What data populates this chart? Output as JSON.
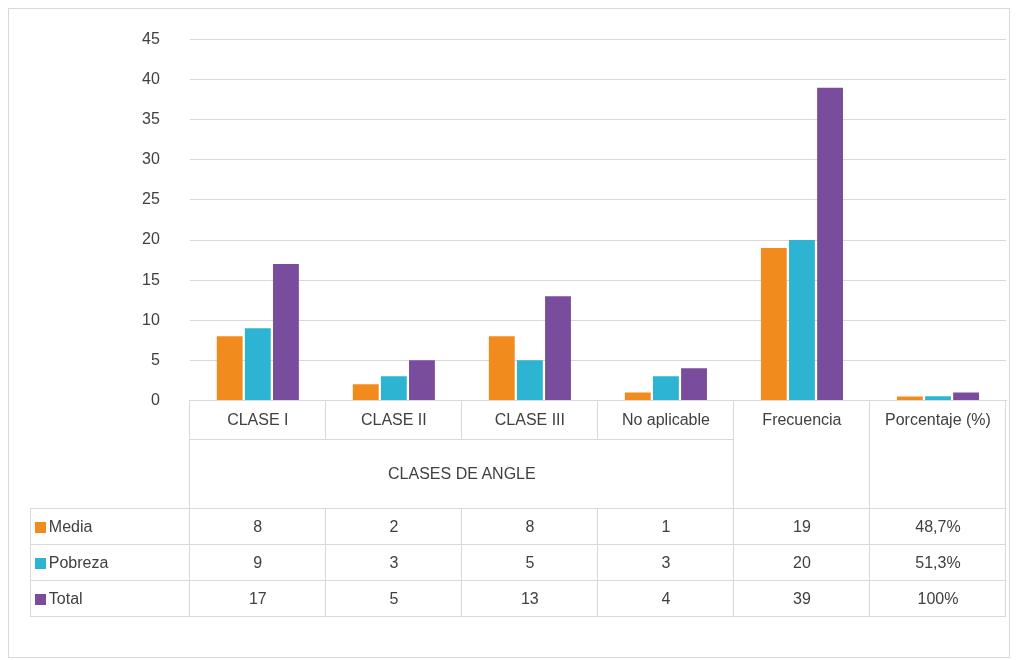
{
  "chart_data": {
    "type": "bar",
    "categories": [
      "CLASE I",
      "CLASE II",
      "CLASE III",
      "No aplicable",
      "Frecuencia",
      "Porcentaje (%)"
    ],
    "series": [
      {
        "name": "Media",
        "color": "#f28b1e",
        "values": [
          8,
          2,
          8,
          1,
          19,
          0.487
        ],
        "value_labels": [
          "8",
          "2",
          "8",
          "1",
          "19",
          "48,7%"
        ]
      },
      {
        "name": "Pobreza",
        "color": "#2db4d2",
        "values": [
          9,
          3,
          5,
          3,
          20,
          0.513
        ],
        "value_labels": [
          "9",
          "3",
          "5",
          "3",
          "20",
          "51,3%"
        ]
      },
      {
        "name": "Total",
        "color": "#7a4c9e",
        "values": [
          17,
          5,
          13,
          4,
          39,
          1
        ],
        "value_labels": [
          "17",
          "5",
          "13",
          "4",
          "39",
          "100%"
        ]
      }
    ],
    "annotations": [
      "CLASES DE ANGLE"
    ],
    "ylim": [
      0,
      45
    ],
    "yticks": [
      0,
      5,
      10,
      15,
      20,
      25,
      30,
      35,
      40,
      45
    ],
    "grid": "y",
    "legend": "bottom"
  }
}
